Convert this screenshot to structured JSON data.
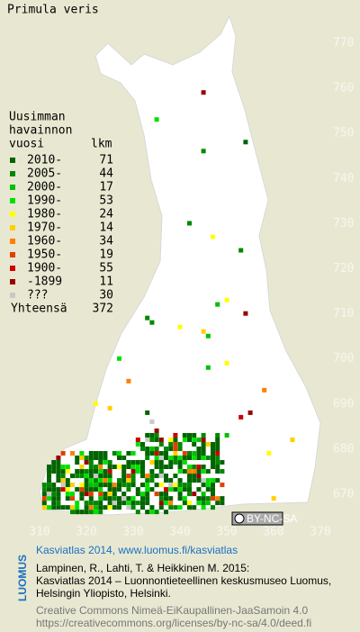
{
  "title": "Primula veris",
  "legend": {
    "heading": [
      "Uusimman",
      "havainnon",
      "vuosi"
    ],
    "count_heading": "lkm",
    "rows": [
      {
        "label": "2010-",
        "count": 71,
        "color": "#006400"
      },
      {
        "label": "2005-",
        "count": 44,
        "color": "#008800"
      },
      {
        "label": "2000-",
        "count": 17,
        "color": "#00c000"
      },
      {
        "label": "1990-",
        "count": 53,
        "color": "#00e000"
      },
      {
        "label": "1980-",
        "count": 24,
        "color": "#ffff00"
      },
      {
        "label": "1970-",
        "count": 14,
        "color": "#ffd000"
      },
      {
        "label": "1960-",
        "count": 34,
        "color": "#ff8000"
      },
      {
        "label": "1950-",
        "count": 19,
        "color": "#e04000"
      },
      {
        "label": "1900-",
        "count": 55,
        "color": "#cc0000"
      },
      {
        "label": "-1899",
        "count": 11,
        "color": "#990000"
      },
      {
        "label": "???",
        "count": 30,
        "color": "#c8c8c8"
      }
    ],
    "total": {
      "label": "Yhteensä",
      "count": 372
    }
  },
  "grid": {
    "y_labels": [
      770,
      760,
      750,
      740,
      730,
      720,
      710,
      700,
      690,
      680,
      670
    ],
    "x_labels": [
      310,
      320,
      330,
      340,
      350,
      360,
      370
    ]
  },
  "license_badge": "BY-NC-SA",
  "footer": {
    "logo": "LUOMUS",
    "link": "Kasviatlas 2014, www.luomus.fi/kasviatlas",
    "citation": [
      "Lampinen, R., Lahti, T. & Heikkinen M. 2015:",
      "Kasviatlas 2014 – Luonnontieteellinen keskusmuseo Luomus,",
      "Helsingin Yliopisto, Helsinki."
    ],
    "license": [
      "Creative Commons Nimeä-EiKaupallinen-JaaSamoin 4.0",
      "https://creativecommons.org/licenses/by-nc-sa/4.0/deed.fi"
    ]
  }
}
